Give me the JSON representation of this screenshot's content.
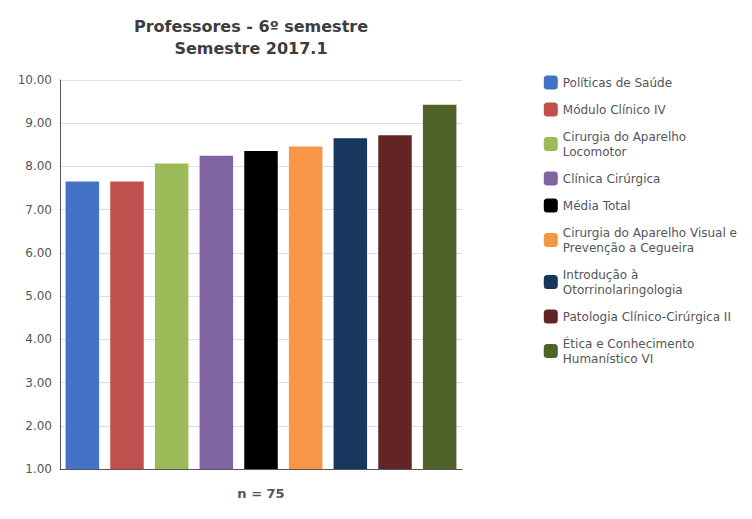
{
  "chart_data": {
    "type": "bar",
    "title": "Professores - 6º semestre\nSemestre 2017.1",
    "categories": [
      "Políticas de Saúde",
      "Módulo Clínico IV",
      "Cirurgia do Aparelho\nLocomotor",
      "Clínica Cirúrgica",
      "Média Total",
      "Cirurgia do Aparelho Visual e\nPrevenção a Cegueira",
      "Introdução à\nOtorrinolaringologia",
      "Patologia Clínico-Cirúrgica II",
      "Ética e Conhecimento\nHumanístico VI"
    ],
    "values": [
      7.65,
      7.65,
      8.07,
      8.25,
      8.36,
      8.46,
      8.65,
      8.72,
      9.43
    ],
    "colors": [
      "#4472C4",
      "#C0504D",
      "#9BBB59",
      "#8064A2",
      "#000000",
      "#F79646",
      "#17375E",
      "#632523",
      "#4F6228"
    ],
    "xlabel": "n = 75",
    "ylim": [
      1.0,
      10.0
    ],
    "yticks": [
      {
        "value": 1.0,
        "label": "1.00"
      },
      {
        "value": 2.0,
        "label": "2.00"
      },
      {
        "value": 3.0,
        "label": "3.00"
      },
      {
        "value": 4.0,
        "label": "4.00"
      },
      {
        "value": 5.0,
        "label": "5.00"
      },
      {
        "value": 6.0,
        "label": "6.00"
      },
      {
        "value": 7.0,
        "label": "7.00"
      },
      {
        "value": 8.0,
        "label": "8.00"
      },
      {
        "value": 9.0,
        "label": "9.00"
      },
      {
        "value": 10.0,
        "label": "10.00"
      }
    ],
    "grid": true,
    "legend": "right",
    "tick_labels": "y"
  }
}
